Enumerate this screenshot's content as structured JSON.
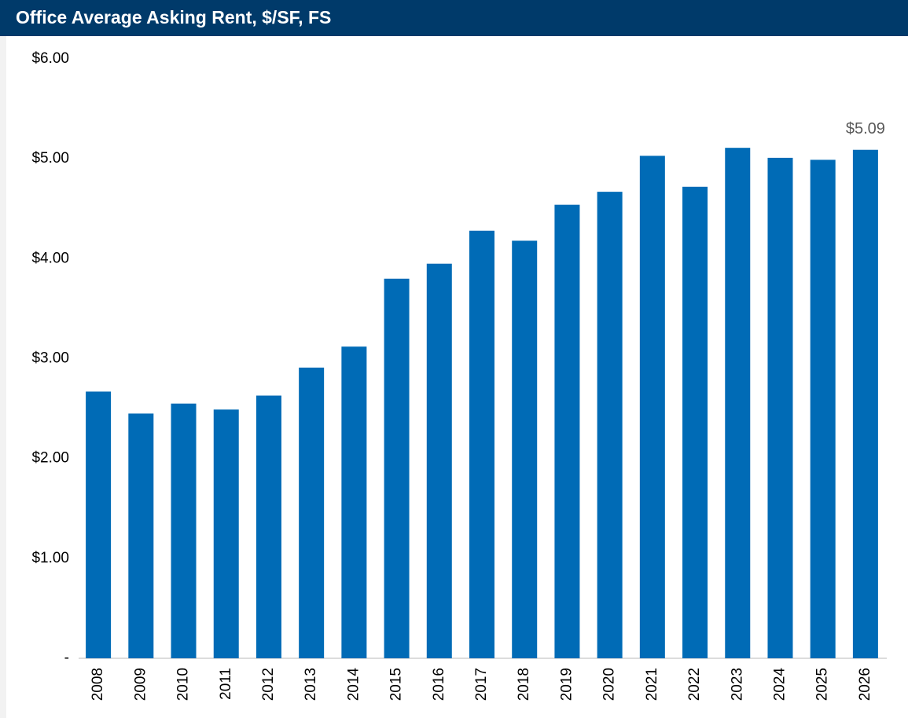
{
  "chart_data": {
    "type": "bar",
    "title": "Office Average Asking Rent, $/SF, FS",
    "categories": [
      "2008",
      "2009",
      "2010",
      "2011",
      "2012",
      "2013",
      "2014",
      "2015",
      "2016",
      "2017",
      "2018",
      "2019",
      "2020",
      "2021",
      "2022",
      "2023",
      "2024",
      "2025",
      "2026"
    ],
    "values": [
      2.67,
      2.45,
      2.55,
      2.49,
      2.63,
      2.91,
      3.12,
      3.8,
      3.95,
      4.28,
      4.18,
      4.54,
      4.67,
      5.03,
      4.72,
      5.11,
      5.01,
      4.99,
      5.09
    ],
    "value_labels": [
      null,
      null,
      null,
      null,
      null,
      null,
      null,
      null,
      null,
      null,
      null,
      null,
      null,
      null,
      null,
      null,
      null,
      null,
      "$5.09"
    ],
    "color": "#006bb6",
    "ylim": [
      0,
      6
    ],
    "yticks": [
      {
        "value": 0,
        "label": "-"
      },
      {
        "value": 1,
        "label": "$1.00"
      },
      {
        "value": 2,
        "label": "$2.00"
      },
      {
        "value": 3,
        "label": "$3.00"
      },
      {
        "value": 4,
        "label": "$4.00"
      },
      {
        "value": 5,
        "label": "$5.00"
      },
      {
        "value": 6,
        "label": "$6.00"
      }
    ],
    "grid": false
  }
}
